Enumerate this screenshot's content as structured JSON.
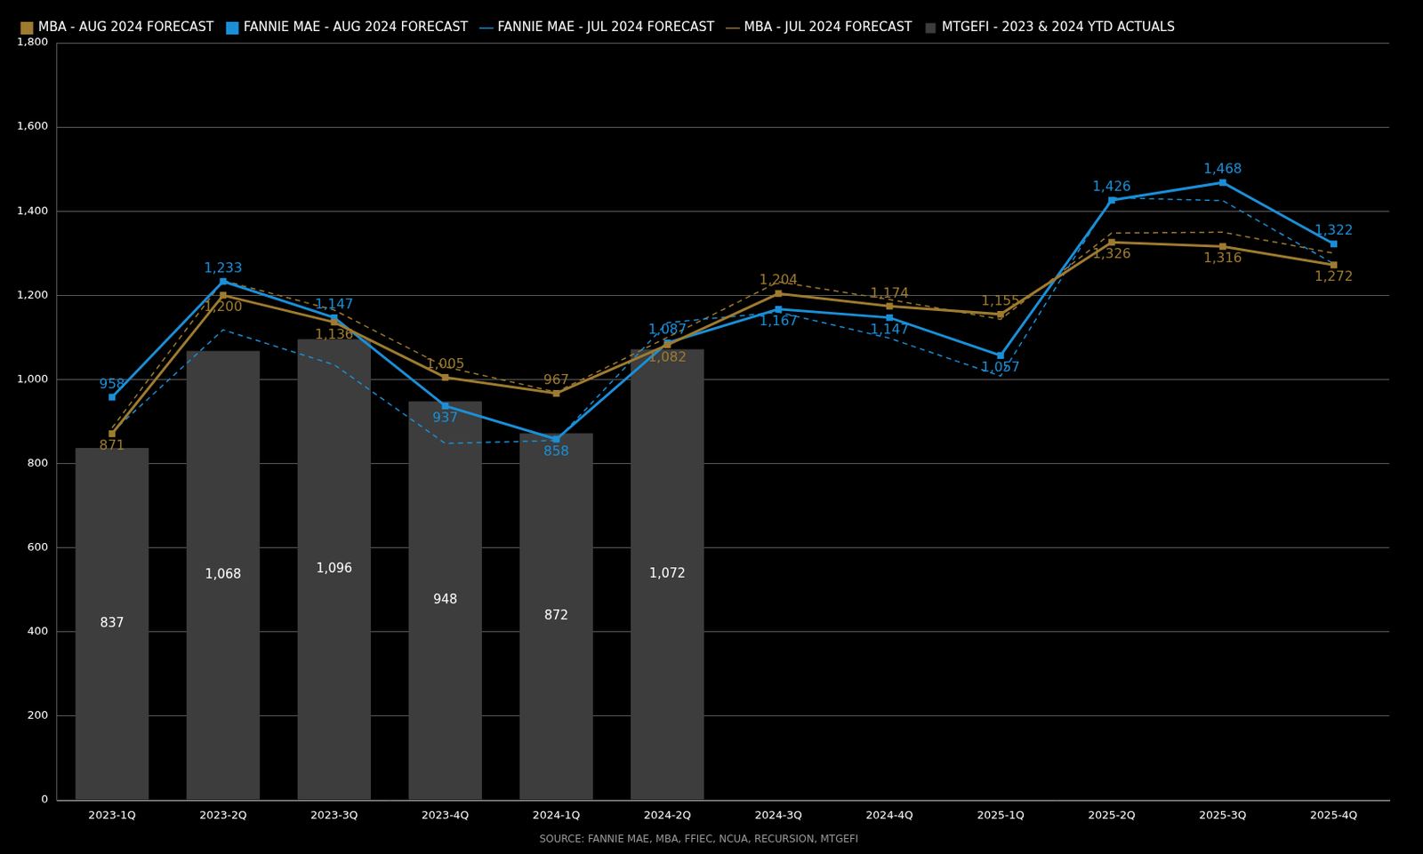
{
  "chart_data": {
    "type": "bar",
    "caption": "SOURCE: FANNIE MAE, MBA, FFIEC, NCUA, RECURSION, MTGEFI",
    "categories": [
      "2023-1Q",
      "2023-2Q",
      "2023-3Q",
      "2023-4Q",
      "2024-1Q",
      "2024-2Q",
      "2024-3Q",
      "2024-4Q",
      "2025-1Q",
      "2025-2Q",
      "2025-3Q",
      "2025-4Q"
    ],
    "ylim": [
      0,
      1800
    ],
    "yticks": [
      0,
      200,
      400,
      600,
      800,
      {
        "value": 1000,
        "label": "1,000"
      },
      {
        "value": 1200,
        "label": "1,200"
      },
      {
        "value": 1400,
        "label": "1,400"
      },
      {
        "value": 1600,
        "label": "1,600"
      },
      {
        "value": 1800,
        "label": "1,800"
      }
    ],
    "grid": true,
    "legend": "top",
    "series": [
      {
        "name": "MTGEFI - 2023 & 2024 YTD ACTUALS",
        "type": "bar",
        "color": "#3d3d3d",
        "marker": "square",
        "data_labels": true,
        "values": [
          837,
          1068,
          1096,
          948,
          872,
          1072,
          null,
          null,
          null,
          null,
          null,
          null
        ],
        "value_labels": [
          "837",
          "1,068",
          "1,096",
          "948",
          "872",
          "1,072",
          null,
          null,
          null,
          null,
          null,
          null
        ]
      },
      {
        "name": "MBA - AUG 2024 FORECAST",
        "type": "line",
        "color": "#9e7b30",
        "marker": "square",
        "line_style": "solid",
        "data_labels": true,
        "values": [
          871,
          1200,
          1136,
          1005,
          967,
          1082,
          1204,
          1174,
          1155,
          1326,
          1316,
          1272
        ],
        "value_labels": [
          "871",
          "1,200",
          "1,136",
          "1,005",
          "967",
          "1,082",
          "1,204",
          "1,174",
          "1,155",
          "1,326",
          "1,316",
          "1,272"
        ]
      },
      {
        "name": "FANNIE MAE - AUG 2024 FORECAST",
        "type": "line",
        "color": "#1a8fd8",
        "marker": "square",
        "line_style": "solid",
        "data_labels": true,
        "values": [
          958,
          1233,
          1147,
          937,
          858,
          1087,
          1167,
          1147,
          1057,
          1426,
          1468,
          1322
        ],
        "value_labels": [
          "958",
          "1,233",
          "1,147",
          "937",
          "858",
          "1,087",
          "1,167",
          "1,147",
          "1,057",
          "1,426",
          "1,468",
          "1,322"
        ]
      },
      {
        "name": "FANNIE MAE - JUL 2024 FORECAST",
        "type": "line",
        "color": "#1a8fd8",
        "marker": "none",
        "line_style": "dashed",
        "data_labels": false,
        "values": [
          875,
          1118,
          1035,
          848,
          855,
          1135,
          1160,
          1098,
          1008,
          1432,
          1425,
          1275
        ]
      },
      {
        "name": "MBA - JUL 2024 FORECAST",
        "type": "line",
        "color": "#9e7b30",
        "marker": "none",
        "line_style": "dashed",
        "data_labels": false,
        "values": [
          885,
          1235,
          1165,
          1030,
          970,
          1100,
          1232,
          1190,
          1143,
          1348,
          1350,
          1300
        ]
      }
    ]
  }
}
